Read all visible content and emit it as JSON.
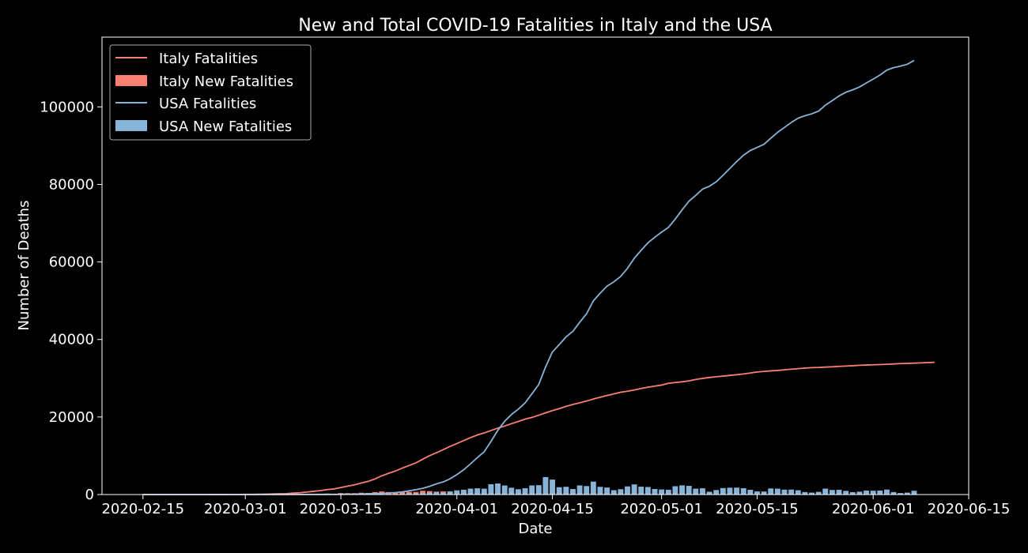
{
  "chart_data": {
    "type": "line",
    "title": "New and Total COVID-19 Fatalities in Italy and the USA",
    "xlabel": "Date",
    "ylabel": "Number of Deaths",
    "x_start": "2020-02-15",
    "x_end": "2020-06-09",
    "xlim": [
      "2020-02-09",
      "2020-06-15"
    ],
    "ylim": [
      0,
      118000
    ],
    "xticks": [
      "2020-02-15",
      "2020-03-01",
      "2020-03-15",
      "2020-04-01",
      "2020-04-15",
      "2020-05-01",
      "2020-05-15",
      "2020-06-01",
      "2020-06-15"
    ],
    "yticks": [
      0,
      20000,
      40000,
      60000,
      80000,
      100000
    ],
    "grid": false,
    "legend": "top-left",
    "colors": {
      "italy": "#fa8072",
      "usa": "#87b4d8",
      "background": "#000000",
      "axes": "#ffffff"
    },
    "series": [
      {
        "name": "Italy Fatalities",
        "kind": "line",
        "color": "#fa8072",
        "values": [
          0,
          0,
          0,
          0,
          0,
          0,
          0,
          1,
          3,
          7,
          10,
          12,
          17,
          21,
          29,
          34,
          52,
          79,
          107,
          148,
          197,
          233,
          366,
          463,
          631,
          827,
          1016,
          1266,
          1441,
          1809,
          2158,
          2503,
          2978,
          3405,
          4032,
          4825,
          5476,
          6077,
          6820,
          7503,
          8165,
          9134,
          10023,
          10779,
          11591,
          12428,
          13155,
          13915,
          14681,
          15362,
          15887,
          16523,
          17127,
          17669,
          18279,
          18849,
          19468,
          19899,
          20465,
          21067,
          21645,
          22170,
          22745,
          23227,
          23660,
          24114,
          24648,
          25085,
          25549,
          25969,
          26384,
          26644,
          26977,
          27359,
          27682,
          27967,
          28236,
          28710,
          28884,
          29079,
          29315,
          29684,
          29958,
          30201,
          30395,
          30560,
          30739,
          30911,
          31106,
          31368,
          31610,
          31763,
          31908,
          32007,
          32169,
          32330,
          32486,
          32616,
          32735,
          32785,
          32877,
          32955,
          33072,
          33142,
          33229,
          33340,
          33415,
          33475,
          33530,
          33601,
          33689,
          33774,
          33846,
          33899,
          33964,
          34043,
          34114
        ]
      },
      {
        "name": "Italy New Fatalities",
        "kind": "bar",
        "color": "#fa8072",
        "values": [
          0,
          0,
          0,
          0,
          0,
          0,
          0,
          1,
          2,
          4,
          3,
          2,
          5,
          4,
          8,
          5,
          18,
          27,
          28,
          41,
          49,
          36,
          133,
          97,
          168,
          196,
          189,
          250,
          175,
          368,
          349,
          345,
          475,
          427,
          627,
          793,
          651,
          601,
          743,
          683,
          662,
          969,
          889,
          756,
          812,
          837,
          727,
          760,
          766,
          681,
          525,
          636,
          604,
          542,
          610,
          570,
          619,
          431,
          566,
          602,
          578,
          525,
          575,
          482,
          433,
          454,
          534,
          437,
          464,
          420,
          415,
          260,
          333,
          382,
          323,
          285,
          269,
          474,
          174,
          195,
          236,
          369,
          274,
          243,
          194,
          165,
          179,
          172,
          195,
          262,
          242,
          153,
          145,
          99,
          162,
          161,
          156,
          130,
          119,
          50,
          92,
          78,
          117,
          70,
          87,
          111,
          75,
          60,
          55,
          71,
          88,
          85,
          72,
          53,
          65,
          79,
          71
        ]
      },
      {
        "name": "USA Fatalities",
        "kind": "line",
        "color": "#87b4d8",
        "values": [
          0,
          0,
          0,
          0,
          0,
          0,
          0,
          0,
          0,
          0,
          0,
          0,
          0,
          0,
          1,
          1,
          2,
          6,
          9,
          11,
          12,
          15,
          19,
          22,
          26,
          30,
          38,
          41,
          48,
          58,
          73,
          95,
          121,
          171,
          239,
          309,
          374,
          509,
          689,
          957,
          1260,
          1614,
          2110,
          2754,
          3251,
          4066,
          5151,
          6394,
          7921,
          9528,
          11044,
          13704,
          16553,
          18894,
          20658,
          22020,
          23644,
          25996,
          28407,
          32916,
          36773,
          38664,
          40661,
          42094,
          44444,
          46622,
          49954,
          51949,
          53755,
          54881,
          56259,
          58355,
          60967,
          62996,
          64943,
          66369,
          67682,
          68922,
          71064,
          73431,
          75662,
          77180,
          78795,
          79526,
          80682,
          82356,
          84119,
          85898,
          87530,
          88754,
          89562,
          90347,
          91921,
          93439,
          94702,
          95979,
          97087,
          97720,
          98220,
          98916,
          100442,
          101617,
          102836,
          103781,
          104396,
          105147,
          106181,
          107175,
          108211,
          109497,
          110132,
          110514,
          111007,
          111979
        ]
      },
      {
        "name": "USA New Fatalities",
        "kind": "bar",
        "color": "#87b4d8",
        "values": [
          0,
          0,
          0,
          0,
          0,
          0,
          0,
          0,
          0,
          0,
          0,
          0,
          0,
          0,
          1,
          0,
          1,
          4,
          3,
          2,
          1,
          3,
          4,
          3,
          4,
          4,
          8,
          3,
          7,
          10,
          15,
          22,
          26,
          50,
          68,
          70,
          65,
          135,
          180,
          268,
          303,
          354,
          496,
          644,
          497,
          815,
          1085,
          1243,
          1527,
          1607,
          1516,
          2660,
          2849,
          2341,
          1764,
          1362,
          1624,
          2352,
          2411,
          4509,
          3857,
          1891,
          1997,
          1433,
          2350,
          2178,
          3332,
          1995,
          1806,
          1126,
          1378,
          2096,
          2612,
          2029,
          1947,
          1426,
          1313,
          1240,
          2142,
          2367,
          2231,
          1518,
          1615,
          731,
          1156,
          1674,
          1763,
          1779,
          1632,
          1224,
          808,
          785,
          1574,
          1518,
          1263,
          1277,
          1108,
          633,
          500,
          696,
          1526,
          1175,
          1219,
          945,
          615,
          751,
          1034,
          994,
          1036,
          1286,
          635,
          382,
          493,
          972
        ]
      }
    ]
  }
}
